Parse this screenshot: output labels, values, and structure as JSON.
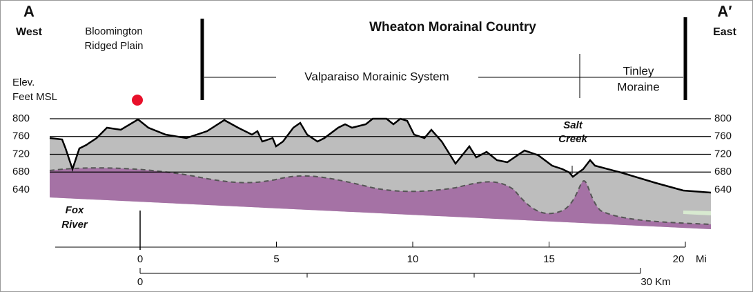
{
  "header": {
    "left_letter": "A",
    "left_dir": "West",
    "right_letter": "A′",
    "right_dir": "East",
    "title": "Wheaton Morainal Country"
  },
  "regions": {
    "plain": [
      "Bloomington",
      "Ridged Plain"
    ],
    "valparaiso": "Valparaiso Morainic System",
    "tinley": [
      "Tinley",
      "Moraine"
    ]
  },
  "elev_label": [
    "Elev.",
    "Feet MSL"
  ],
  "features": {
    "salt_creek": [
      "Salt",
      "Creek"
    ],
    "fox_river": [
      "Fox",
      "River"
    ]
  },
  "elev_ticks": [
    800,
    760,
    720,
    680,
    640
  ],
  "mile_ticks": [
    0,
    5,
    10,
    15,
    20
  ],
  "mile_unit": "Mi",
  "km_labels": {
    "start": "0",
    "end": "30 Km"
  }
}
